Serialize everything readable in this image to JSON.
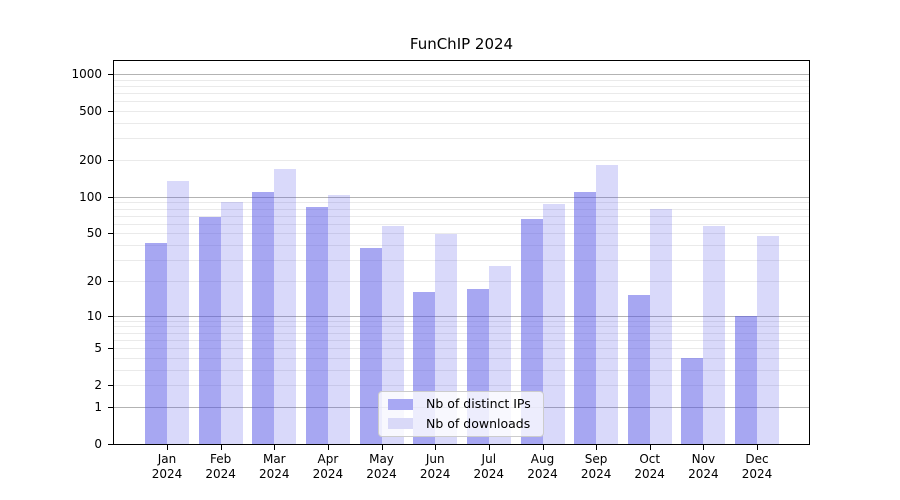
{
  "chart_data": {
    "type": "bar",
    "title": "FunChIP 2024",
    "year_label": "2024",
    "categories": [
      "Jan",
      "Feb",
      "Mar",
      "Apr",
      "May",
      "Jun",
      "Jul",
      "Aug",
      "Sep",
      "Oct",
      "Nov",
      "Dec"
    ],
    "series": [
      {
        "name": "Nb of distinct IPs",
        "color_hex": "#a8a8f3",
        "color_css": "rgba(80,80,230,0.5)",
        "values": [
          42,
          68,
          110,
          83,
          38,
          16,
          17,
          66,
          110,
          15,
          4,
          10
        ]
      },
      {
        "name": "Nb of downloads",
        "color_hex": "#d9d9f8",
        "color_css": "rgba(80,80,230,0.22)",
        "values": [
          134,
          90,
          170,
          104,
          58,
          49,
          27,
          88,
          181,
          79,
          57,
          48
        ]
      }
    ],
    "y_axis": {
      "scale": "log10(value+1)",
      "tick_values": [
        0,
        1,
        2,
        5,
        10,
        20,
        50,
        100,
        200,
        500,
        1000
      ],
      "tick_labels": [
        "0",
        "1",
        "2",
        "5",
        "10",
        "20",
        "50",
        "100",
        "200",
        "500",
        "1000"
      ],
      "range_top": 1290
    },
    "grid": {
      "major_values": [
        1,
        10,
        100,
        1000
      ],
      "minor_values": [
        2,
        3,
        4,
        5,
        6,
        7,
        8,
        9,
        20,
        30,
        40,
        50,
        60,
        70,
        80,
        90,
        200,
        300,
        400,
        500,
        600,
        700,
        800,
        900
      ]
    },
    "legend": {
      "position": "lower center"
    }
  }
}
